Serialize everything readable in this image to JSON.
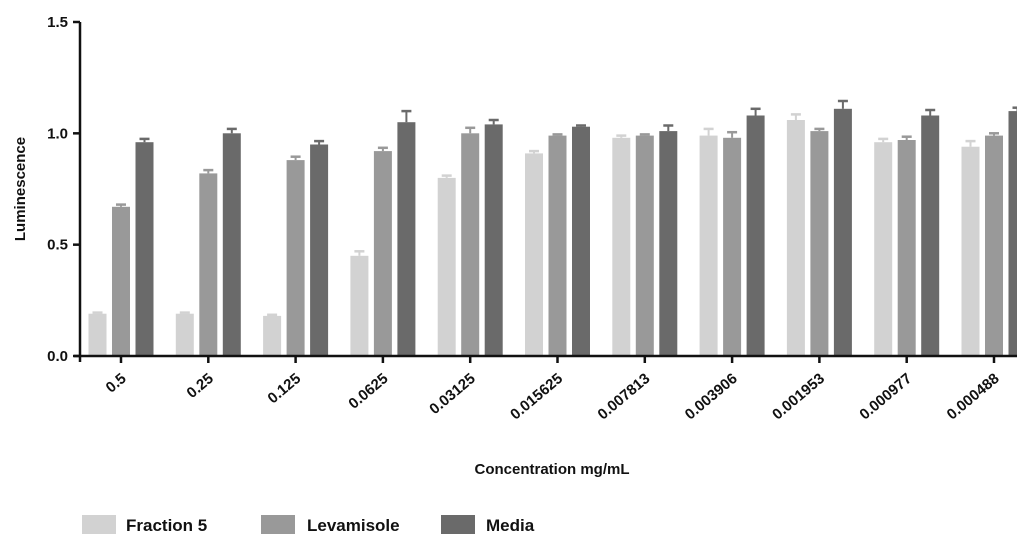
{
  "chart_data": {
    "type": "bar",
    "title": "",
    "xlabel": "Concentration mg/mL",
    "ylabel": "Luminescence",
    "ylim": [
      0,
      1.5
    ],
    "yticks": [
      "0.0",
      "0.5",
      "1.0",
      "1.5"
    ],
    "categories": [
      "0.5",
      "0.25",
      "0.125",
      "0.0625",
      "0.03125",
      "0.015625",
      "0.007813",
      "0.003906",
      "0.001953",
      "0.000977",
      "0.000488"
    ],
    "series": [
      {
        "name": "Fraction 5",
        "color": "#d2d2d2",
        "values": [
          0.19,
          0.19,
          0.18,
          0.45,
          0.8,
          0.91,
          0.98,
          0.99,
          1.06,
          0.96,
          0.94
        ],
        "errors": [
          0.005,
          0.005,
          0.005,
          0.02,
          0.01,
          0.01,
          0.01,
          0.03,
          0.025,
          0.015,
          0.025
        ]
      },
      {
        "name": "Levamisole",
        "color": "#999999",
        "values": [
          0.67,
          0.82,
          0.88,
          0.92,
          1.0,
          0.99,
          0.99,
          0.98,
          1.01,
          0.97,
          0.99
        ],
        "errors": [
          0.01,
          0.015,
          0.015,
          0.015,
          0.025,
          0.005,
          0.005,
          0.025,
          0.01,
          0.015,
          0.01
        ]
      },
      {
        "name": "Media",
        "color": "#6a6a6a",
        "values": [
          0.96,
          1.0,
          0.95,
          1.05,
          1.04,
          1.03,
          1.01,
          1.08,
          1.11,
          1.08,
          1.1
        ],
        "errors": [
          0.015,
          0.02,
          0.015,
          0.05,
          0.02,
          0.005,
          0.025,
          0.03,
          0.035,
          0.025,
          0.015
        ]
      }
    ],
    "grid": false,
    "legend_position": "bottom-left"
  }
}
